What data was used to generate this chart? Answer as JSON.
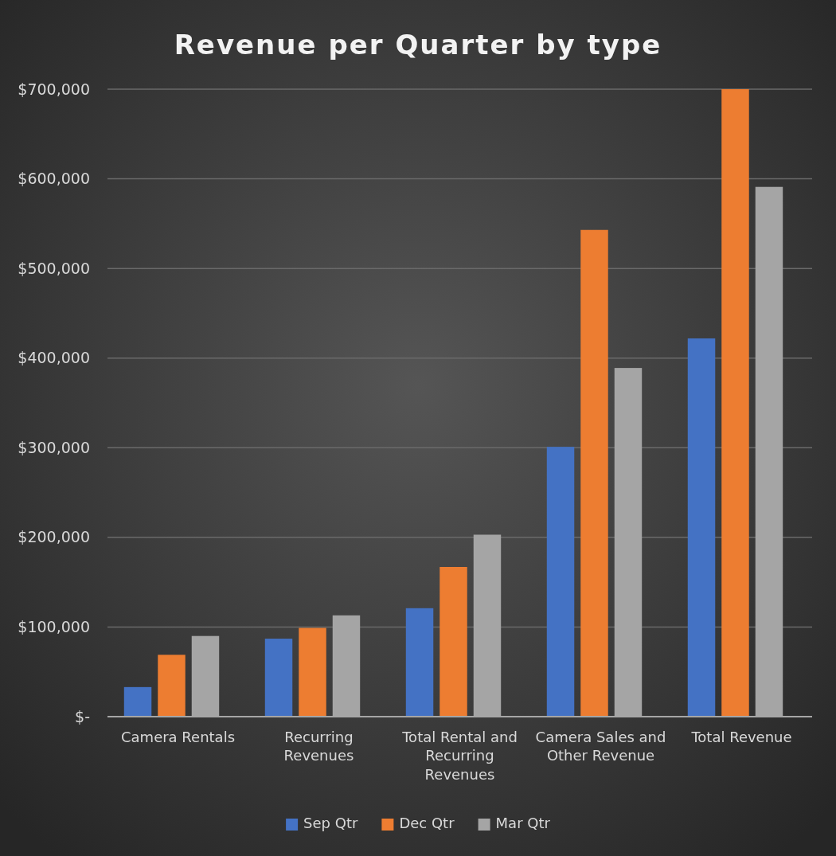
{
  "chart_data": {
    "type": "bar",
    "title": "Revenue per Quarter by type",
    "categories": [
      "Camera Rentals",
      "Recurring Revenues",
      "Total Rental and Recurring Revenues",
      "Camera Sales and Other Revenue",
      "Total Revenue"
    ],
    "series": [
      {
        "name": "Sep Qtr",
        "color": "#4472c4",
        "values": [
          33000,
          87000,
          121000,
          301000,
          422000
        ]
      },
      {
        "name": "Dec Qtr",
        "color": "#ed7d31",
        "values": [
          69000,
          99000,
          167000,
          543000,
          700000
        ]
      },
      {
        "name": "Mar Qtr",
        "color": "#a5a5a5",
        "values": [
          90000,
          113000,
          203000,
          389000,
          591000
        ]
      }
    ],
    "ylim": [
      0,
      700000
    ],
    "yticks": [
      {
        "value": 0,
        "label": "$-"
      },
      {
        "value": 100000,
        "label": "$100,000"
      },
      {
        "value": 200000,
        "label": "$200,000"
      },
      {
        "value": 300000,
        "label": "$300,000"
      },
      {
        "value": 400000,
        "label": "$400,000"
      },
      {
        "value": 500000,
        "label": "$500,000"
      },
      {
        "value": 600000,
        "label": "$600,000"
      },
      {
        "value": 700000,
        "label": "$700,000"
      }
    ],
    "grid": "y",
    "legend": "bottom"
  }
}
